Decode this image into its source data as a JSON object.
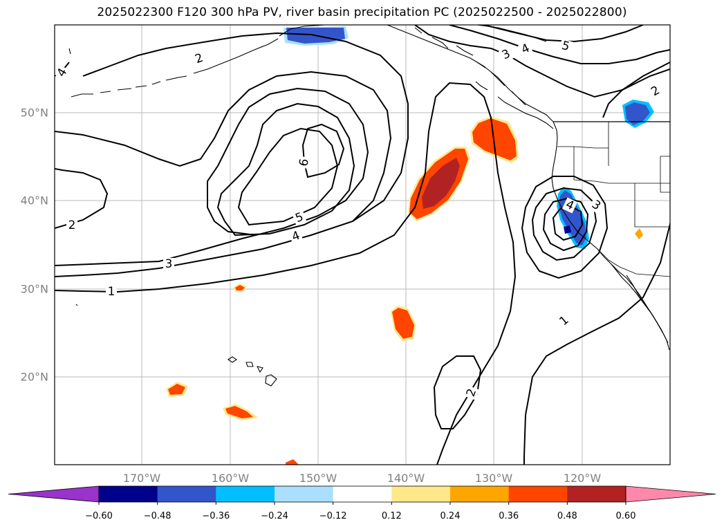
{
  "title": "2025022300 F120 300 hPa PV, river basin precipitation PC (2025022500 - 2025022800)",
  "map": {
    "lat_labels": [
      "50°N",
      "40°N",
      "30°N",
      "20°N"
    ],
    "lon_labels": [
      "170°W",
      "160°W",
      "150°W",
      "140°W",
      "130°W",
      "120°W"
    ],
    "pv_contour_labels": [
      "1",
      "1",
      "2",
      "2",
      "2",
      "2",
      "3",
      "3",
      "3",
      "4",
      "4",
      "4",
      "4",
      "5",
      "5",
      "6"
    ]
  },
  "colorbar": {
    "ticks": [
      "−0.60",
      "−0.48",
      "−0.36",
      "−0.24",
      "−0.12",
      "0.12",
      "0.24",
      "0.36",
      "0.48",
      "0.60"
    ],
    "colors": [
      "#9933cc",
      "#00008b",
      "#3355cc",
      "#00bfff",
      "#aadfff",
      "#ffffff",
      "#ffe88a",
      "#ffa500",
      "#ff4500",
      "#b22222",
      "#ff88aa"
    ]
  }
}
